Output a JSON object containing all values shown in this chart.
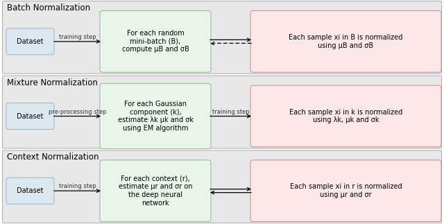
{
  "rows": [
    {
      "title": "Batch Normalization",
      "dataset_label": "Dataset",
      "middle_label": "For each random\nmini-batch (B),\ncompute μB and σB",
      "right_label": "Each sample xi in B is normalized\nusing μB and σB",
      "left_arrow_label": "training step",
      "right_arrow_label": "",
      "arrow_style": "both_dashed"
    },
    {
      "title": "Mixture Normalization",
      "dataset_label": "Dataset",
      "middle_label": "For each Gaussian\ncomponent (k),\nestimate λk μk and σk\nusing EM algorithm",
      "right_label": "Each sample xi in k is normalized\nusing λk, μk and σk",
      "left_arrow_label": "pre-processing step",
      "right_arrow_label": "training step",
      "arrow_style": "single_right"
    },
    {
      "title": "Context Normalization",
      "dataset_label": "Dataset",
      "middle_label": "For each context (r),\nestimate μr and σr on\nthe deep neural\nnetwork",
      "right_label": "Each sample xi in r is normalized\nusing μr and σr",
      "left_arrow_label": "training step",
      "right_arrow_label": "",
      "arrow_style": "both_solid"
    }
  ],
  "panel_bg": "#e8e8e8",
  "panel_edge": "#aaaaaa",
  "dataset_box_color": "#dce8f0",
  "dataset_box_edge": "#9ab4c8",
  "middle_box_color": "#eaf5ea",
  "middle_box_edge": "#88bb88",
  "right_box_color": "#fce8e8",
  "right_box_edge": "#cc8888",
  "title_fontsize": 8.5,
  "label_fontsize": 7.0,
  "arrow_label_fontsize": 6.0,
  "fig_width": 6.4,
  "fig_height": 3.23,
  "dpi": 100
}
